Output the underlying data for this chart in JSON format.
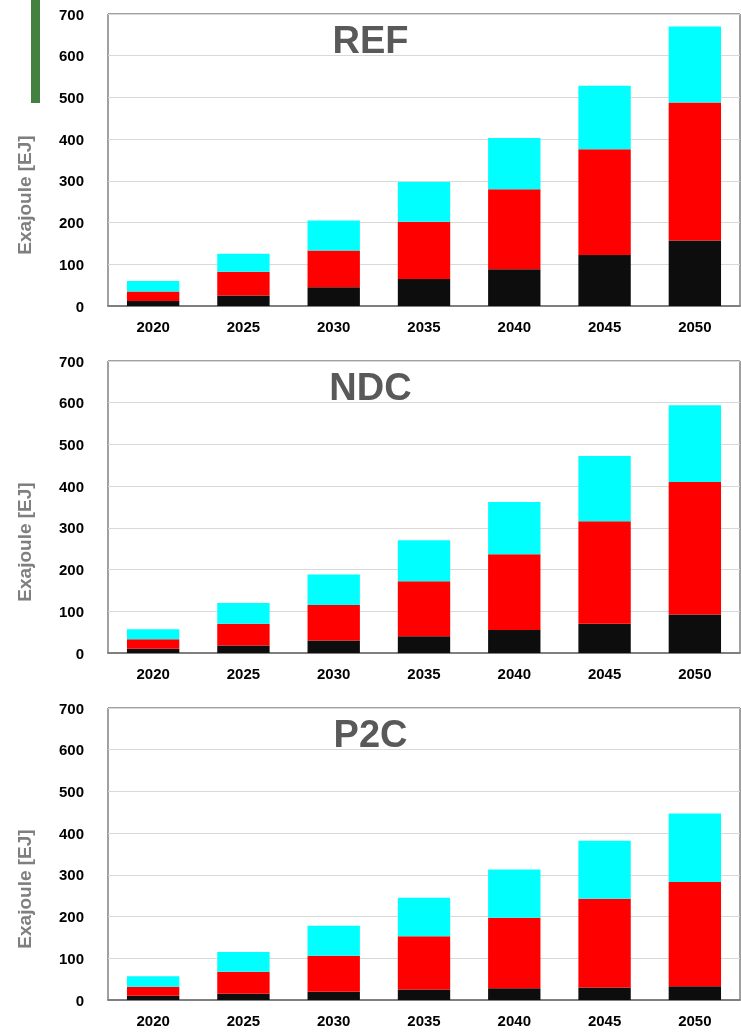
{
  "chart_data": [
    {
      "type": "bar",
      "title": "REF",
      "ylabel": "Exajoule [EJ]",
      "categories": [
        "2020",
        "2025",
        "2030",
        "2035",
        "2040",
        "2045",
        "2050"
      ],
      "stacked": true,
      "ylim": [
        0,
        700
      ],
      "yticks": [
        0,
        100,
        200,
        300,
        400,
        500,
        600,
        700
      ],
      "grid": "y",
      "series": [
        {
          "color": "#0d0d0d",
          "values": [
            12,
            25,
            45,
            65,
            88,
            122,
            157
          ]
        },
        {
          "color": "#ff0000",
          "values": [
            23,
            57,
            88,
            137,
            192,
            254,
            331
          ]
        },
        {
          "color": "#00ffff",
          "values": [
            25,
            43,
            72,
            95,
            123,
            152,
            182
          ]
        }
      ]
    },
    {
      "type": "bar",
      "title": "NDC",
      "ylabel": "Exajoule [EJ]",
      "categories": [
        "2020",
        "2025",
        "2030",
        "2035",
        "2040",
        "2045",
        "2050"
      ],
      "stacked": true,
      "ylim": [
        0,
        700
      ],
      "yticks": [
        0,
        100,
        200,
        300,
        400,
        500,
        600,
        700
      ],
      "grid": "y",
      "series": [
        {
          "color": "#0d0d0d",
          "values": [
            10,
            18,
            30,
            40,
            55,
            70,
            92
          ]
        },
        {
          "color": "#ff0000",
          "values": [
            23,
            52,
            85,
            132,
            182,
            246,
            318
          ]
        },
        {
          "color": "#00ffff",
          "values": [
            24,
            50,
            73,
            98,
            125,
            156,
            184
          ]
        }
      ]
    },
    {
      "type": "bar",
      "title": "P2C",
      "ylabel": "Exajoule [EJ]",
      "categories": [
        "2020",
        "2025",
        "2030",
        "2035",
        "2040",
        "2045",
        "2050"
      ],
      "stacked": true,
      "ylim": [
        0,
        700
      ],
      "yticks": [
        0,
        100,
        200,
        300,
        400,
        500,
        600,
        700
      ],
      "grid": "y",
      "series": [
        {
          "color": "#0d0d0d",
          "values": [
            10,
            15,
            20,
            25,
            28,
            30,
            33
          ]
        },
        {
          "color": "#ff0000",
          "values": [
            22,
            53,
            86,
            128,
            169,
            213,
            250
          ]
        },
        {
          "color": "#00ffff",
          "values": [
            25,
            47,
            72,
            92,
            116,
            139,
            164
          ]
        }
      ]
    }
  ]
}
